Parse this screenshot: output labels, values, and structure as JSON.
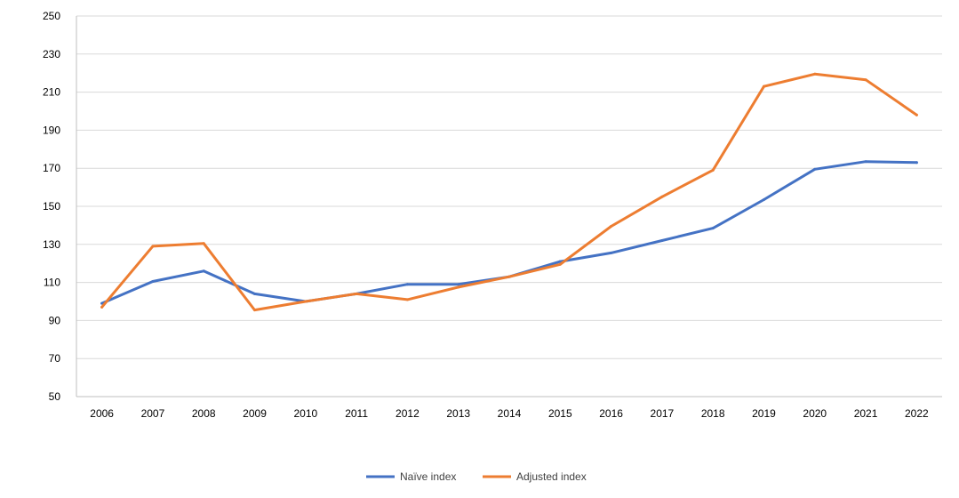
{
  "chart_data": {
    "type": "line",
    "title": "",
    "xlabel": "",
    "ylabel": "",
    "categories": [
      "2006",
      "2007",
      "2008",
      "2009",
      "2010",
      "2011",
      "2012",
      "2013",
      "2014",
      "2015",
      "2016",
      "2017",
      "2018",
      "2019",
      "2020",
      "2021",
      "2022"
    ],
    "ylim": [
      50,
      250
    ],
    "yticks": [
      50,
      70,
      90,
      110,
      130,
      150,
      170,
      190,
      210,
      230,
      250
    ],
    "grid": "horizontal",
    "legend_position": "bottom",
    "series": [
      {
        "name": "Naïve index",
        "color": "#4472c4",
        "values": [
          99,
          110.5,
          116,
          104,
          100,
          104,
          109,
          109,
          113,
          121,
          125.5,
          132,
          138.5,
          153.5,
          169.5,
          173.5,
          173
        ]
      },
      {
        "name": "Adjusted index",
        "color": "#ed7d31",
        "values": [
          97,
          129,
          130.5,
          95.5,
          100,
          104,
          101,
          107.5,
          113,
          119.5,
          139.5,
          155,
          169,
          213,
          219.5,
          216.5,
          198
        ]
      }
    ]
  }
}
